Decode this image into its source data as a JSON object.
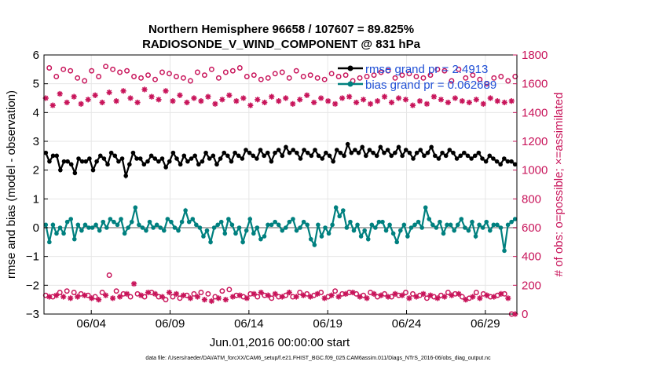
{
  "chart_data": {
    "type": "line",
    "title": "Northern Hemisphere 96658 / 107607 = 89.825%",
    "subtitle": "RADIOSONDE_V_WIND_COMPONENT @ 831 hPa",
    "xlabel": "Jun.01,2016 00:00:00 start",
    "ylabel": "rmse and bias (model - observation)",
    "y2label": "# of obs: o=possible; ×=assimilated",
    "footnote": "data file: /Users/raeder/DAI/ATM_forcXX/CAM6_setup/f.e21.FHIST_BGC.f09_025.CAM6assim.011/Diags_NTrS_2016-06/obs_diag_output.nc",
    "xlim": [
      0.5,
      30.5
    ],
    "ylim": [
      -3,
      6
    ],
    "y2lim": [
      0,
      1800
    ],
    "xticks": [
      3.5,
      8.5,
      13.5,
      18.5,
      23.5,
      28.5
    ],
    "xticklabels": [
      "06/04",
      "06/09",
      "06/14",
      "06/19",
      "06/24",
      "06/29"
    ],
    "yticks": [
      -3,
      -2,
      -1,
      0,
      1,
      2,
      3,
      4,
      5,
      6
    ],
    "yticklabels": [
      "−3",
      "−2",
      "−1",
      "0",
      "1",
      "2",
      "3",
      "4",
      "5",
      "6"
    ],
    "y2ticks": [
      0,
      200,
      400,
      600,
      800,
      1000,
      1200,
      1400,
      1600,
      1800
    ],
    "y2ticklabels": [
      "0",
      "200",
      "400",
      "600",
      "800",
      "1000",
      "1200",
      "1400",
      "1600",
      "1800"
    ],
    "grid": true,
    "legend_position": "top-right",
    "colors": {
      "rmse": "#000000",
      "bias": "#00807f",
      "obs": "#c8145a",
      "legend_text": "#1f4fd6",
      "zero_line": "#b0b0b0",
      "grid": "#e6e6e6"
    },
    "series": [
      {
        "name": "rmse grand pr = 2.4913",
        "axis": "left",
        "marker": "filled-circle",
        "color": "#000000",
        "values": [
          2.6,
          2.3,
          2.5,
          2.5,
          2.0,
          2.3,
          2.3,
          2.2,
          1.9,
          2.4,
          2.3,
          2.3,
          2.4,
          2.0,
          2.3,
          2.5,
          2.4,
          2.2,
          2.6,
          2.5,
          2.3,
          2.4,
          1.8,
          2.2,
          2.6,
          2.4,
          2.4,
          2.2,
          2.3,
          2.5,
          2.4,
          2.3,
          2.4,
          2.1,
          2.3,
          2.6,
          2.4,
          2.2,
          2.5,
          2.3,
          2.4,
          2.5,
          2.2,
          2.3,
          2.6,
          2.4,
          2.5,
          2.2,
          2.4,
          2.6,
          2.5,
          2.3,
          2.6,
          2.5,
          2.4,
          2.7,
          2.6,
          2.5,
          2.4,
          2.7,
          2.5,
          2.6,
          2.3,
          2.6,
          2.7,
          2.5,
          2.8,
          2.6,
          2.7,
          2.6,
          2.4,
          2.7,
          2.6,
          2.5,
          2.7,
          2.5,
          2.4,
          2.6,
          2.5,
          2.3,
          2.7,
          2.6,
          2.5,
          2.9,
          2.6,
          2.7,
          2.6,
          2.8,
          2.5,
          2.7,
          2.6,
          2.5,
          2.8,
          2.6,
          2.7,
          2.5,
          2.6,
          2.8,
          2.5,
          2.7,
          2.6,
          2.4,
          2.6,
          2.7,
          2.5,
          2.6,
          2.8,
          2.5,
          2.4,
          2.6,
          2.5,
          2.7,
          2.6,
          2.4,
          2.5,
          2.6,
          2.5,
          2.4,
          2.5,
          2.6,
          2.4,
          2.3,
          2.5,
          2.4,
          2.3,
          2.2,
          2.4,
          2.3,
          2.3,
          2.2
        ]
      },
      {
        "name": "bias grand pr = 0.062689",
        "axis": "left",
        "marker": "filled-circle",
        "color": "#00807f",
        "values": [
          0.1,
          -0.5,
          0.1,
          -0.2,
          0.0,
          -0.2,
          0.2,
          0.3,
          -0.4,
          0.1,
          -0.1,
          0.1,
          0.0,
          0.0,
          0.1,
          -0.1,
          0.2,
          0.0,
          0.3,
          0.2,
          0.1,
          0.3,
          -0.2,
          0.0,
          0.2,
          0.7,
          0.1,
          0.0,
          -0.1,
          0.2,
          0.0,
          0.1,
          0.0,
          -0.1,
          0.3,
          0.2,
          0.0,
          -0.1,
          0.2,
          0.6,
          0.2,
          0.3,
          0.1,
          0.0,
          -0.3,
          -0.1,
          -0.5,
          0.0,
          0.1,
          0.2,
          -0.2,
          0.3,
          0.1,
          -0.2,
          0.0,
          -0.5,
          -0.1,
          0.3,
          -0.2,
          0.0,
          -0.4,
          -0.3,
          0.1,
          0.1,
          0.2,
          0.1,
          -0.1,
          0.0,
          0.2,
          0.3,
          -0.1,
          0.0,
          0.2,
          0.1,
          -0.4,
          -0.6,
          0.1,
          -0.3,
          0.0,
          -0.2,
          0.1,
          0.7,
          0.4,
          0.6,
          0.0,
          0.2,
          -0.1,
          0.1,
          -0.3,
          -0.1,
          -0.4,
          0.1,
          0.0,
          0.2,
          0.2,
          -0.1,
          0.1,
          -0.2,
          -0.5,
          -0.1,
          0.1,
          -0.3,
          0.0,
          0.1,
          0.2,
          0.0,
          0.7,
          0.3,
          0.1,
          0.0,
          0.2,
          -0.2,
          0.1,
          0.1,
          -0.1,
          0.1,
          0.3,
          0.0,
          -0.1,
          0.2,
          -0.3,
          0.1,
          0.0,
          0.2,
          -0.1,
          0.1,
          0.1,
          0.0,
          -0.8,
          0.1,
          0.2,
          0.3
        ]
      },
      {
        "name": "possible",
        "axis": "right",
        "marker": "open-circle",
        "color": "#c8145a",
        "values": [
          130,
          1710,
          120,
          1650,
          150,
          1700,
          160,
          1690,
          150,
          1640,
          140,
          1620,
          130,
          1690,
          120,
          1650,
          150,
          1720,
          270,
          1700,
          160,
          1680,
          140,
          1690,
          120,
          1650,
          140,
          1640,
          120,
          1660,
          150,
          1630,
          120,
          1680,
          100,
          1670,
          120,
          1650,
          110,
          1640,
          130,
          1620,
          140,
          1680,
          150,
          1660,
          140,
          1700,
          120,
          1640,
          160,
          1680,
          170,
          1690,
          130,
          1710,
          120,
          1650,
          140,
          1660,
          120,
          1630,
          130,
          1640,
          110,
          1670,
          120,
          1680,
          130,
          1640,
          120,
          1690,
          150,
          1650,
          140,
          1660,
          130,
          1640,
          150,
          1630,
          120,
          1670,
          160,
          1650,
          140,
          1660,
          150,
          1620,
          140,
          1640,
          130,
          1650,
          150,
          1660,
          120,
          1680,
          140,
          1690,
          120,
          1640,
          130,
          1660,
          150,
          1670,
          140,
          1650,
          130,
          1640,
          110,
          1660,
          120,
          1700,
          130,
          1690,
          150,
          1620,
          140,
          1700,
          120,
          1640,
          110,
          1660,
          150,
          1630,
          140,
          1600,
          120,
          1640,
          130,
          1650,
          140,
          1620,
          0,
          1650
        ]
      },
      {
        "name": "assimilated",
        "axis": "right",
        "marker": "asterisk",
        "color": "#c8145a",
        "values": [
          1500,
          120,
          1450,
          130,
          1530,
          120,
          1470,
          110,
          1510,
          120,
          1460,
          130,
          1490,
          110,
          1520,
          100,
          1470,
          130,
          1540,
          110,
          1480,
          120,
          1550,
          140,
          1500,
          210,
          1470,
          130,
          1560,
          150,
          1510,
          140,
          1490,
          120,
          1550,
          150,
          1480,
          140,
          1520,
          130,
          1470,
          110,
          1500,
          120,
          1480,
          100,
          1510,
          90,
          1460,
          110,
          1490,
          100,
          1520,
          120,
          1480,
          130,
          1500,
          110,
          1450,
          140,
          1490,
          150,
          1470,
          130,
          1510,
          140,
          1480,
          120,
          1500,
          150,
          1460,
          120,
          1490,
          130,
          1520,
          120,
          1470,
          140,
          1500,
          110,
          1480,
          130,
          1460,
          120,
          1500,
          140,
          1510,
          150,
          1470,
          120,
          1490,
          110,
          1460,
          140,
          1480,
          130,
          1510,
          120,
          1470,
          140,
          1500,
          130,
          1490,
          110,
          1450,
          120,
          1480,
          140,
          1460,
          130,
          1510,
          110,
          1490,
          120,
          1470,
          130,
          1500,
          140,
          1480,
          100,
          1470,
          120,
          1490,
          110,
          1460,
          130,
          1500,
          120,
          1480,
          140,
          1470,
          110,
          1480,
          0
        ]
      }
    ]
  }
}
